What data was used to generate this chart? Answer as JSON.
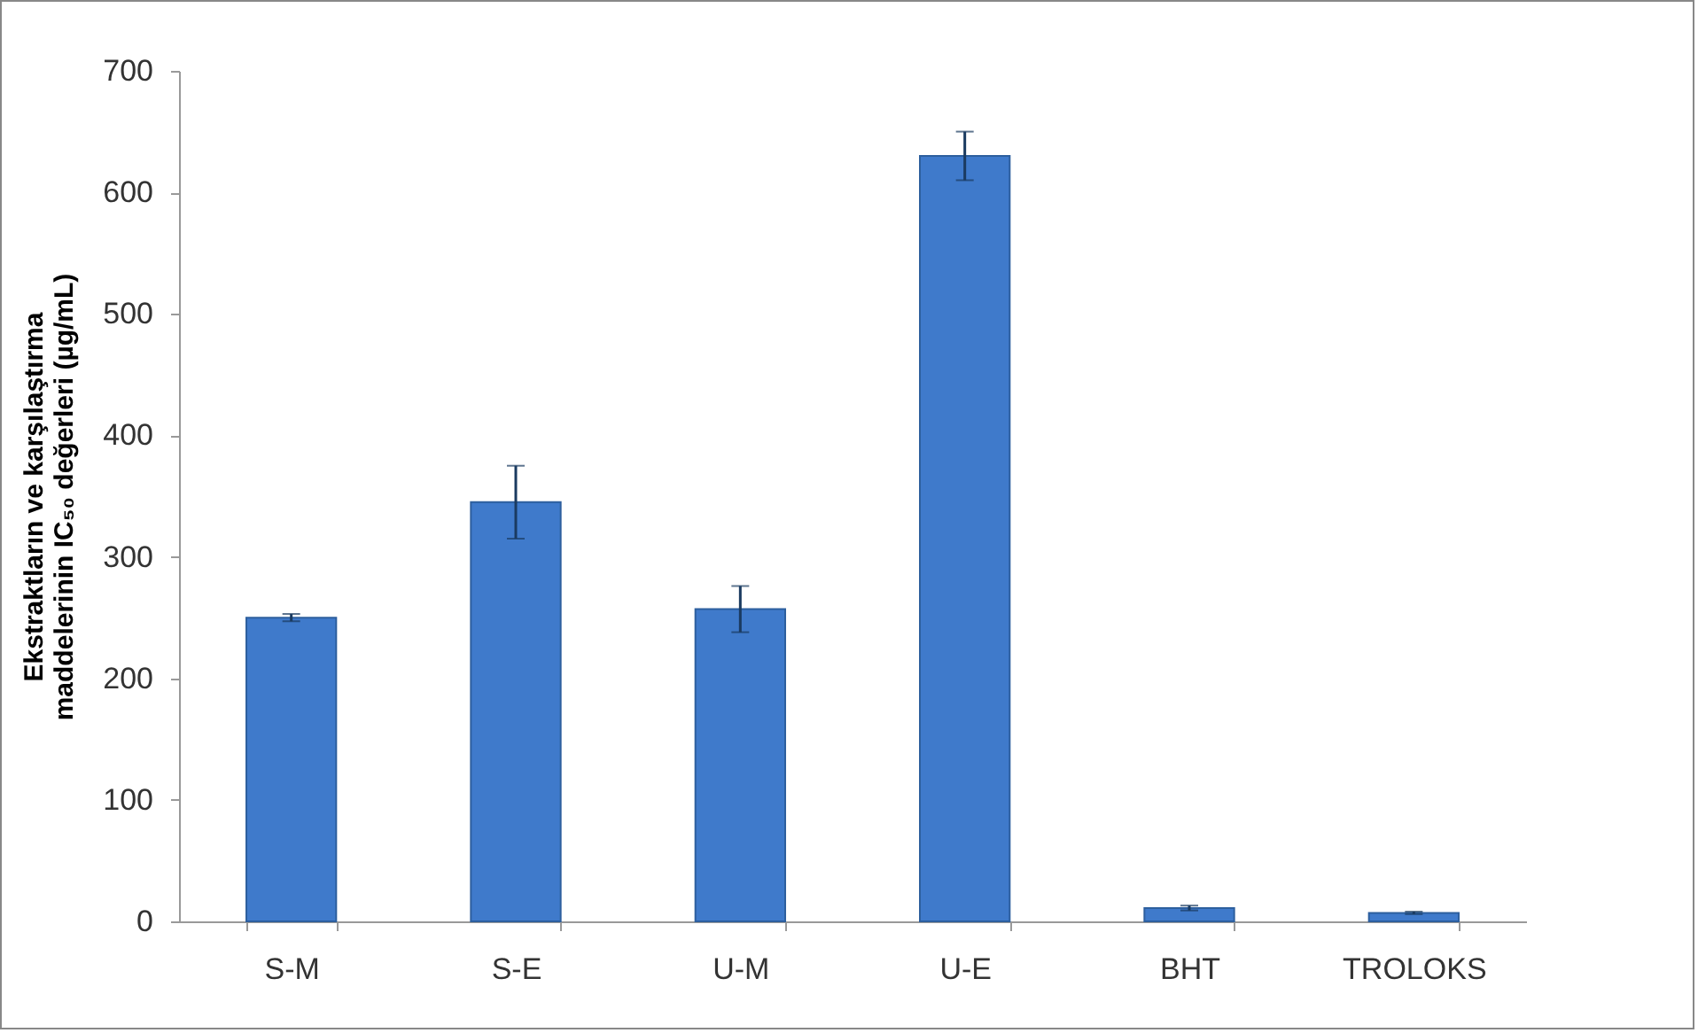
{
  "chart_data": {
    "type": "bar",
    "ylabel": [
      "Ekstraktların  ve karşılaştırma",
      "maddelerinin IC₅₀ değerleri (µg/mL)"
    ],
    "categories": [
      "S-M",
      "S-E",
      "U-M",
      "U-E",
      "BHT",
      "TROLOKS"
    ],
    "values": [
      250,
      345,
      257,
      630,
      11,
      7
    ],
    "errors": [
      3,
      30,
      19,
      20,
      2,
      1
    ],
    "color": "#3f7acb",
    "ylim": [
      0,
      700
    ],
    "yticks": [
      0,
      100,
      200,
      300,
      400,
      500,
      600,
      700
    ],
    "grid": false
  }
}
